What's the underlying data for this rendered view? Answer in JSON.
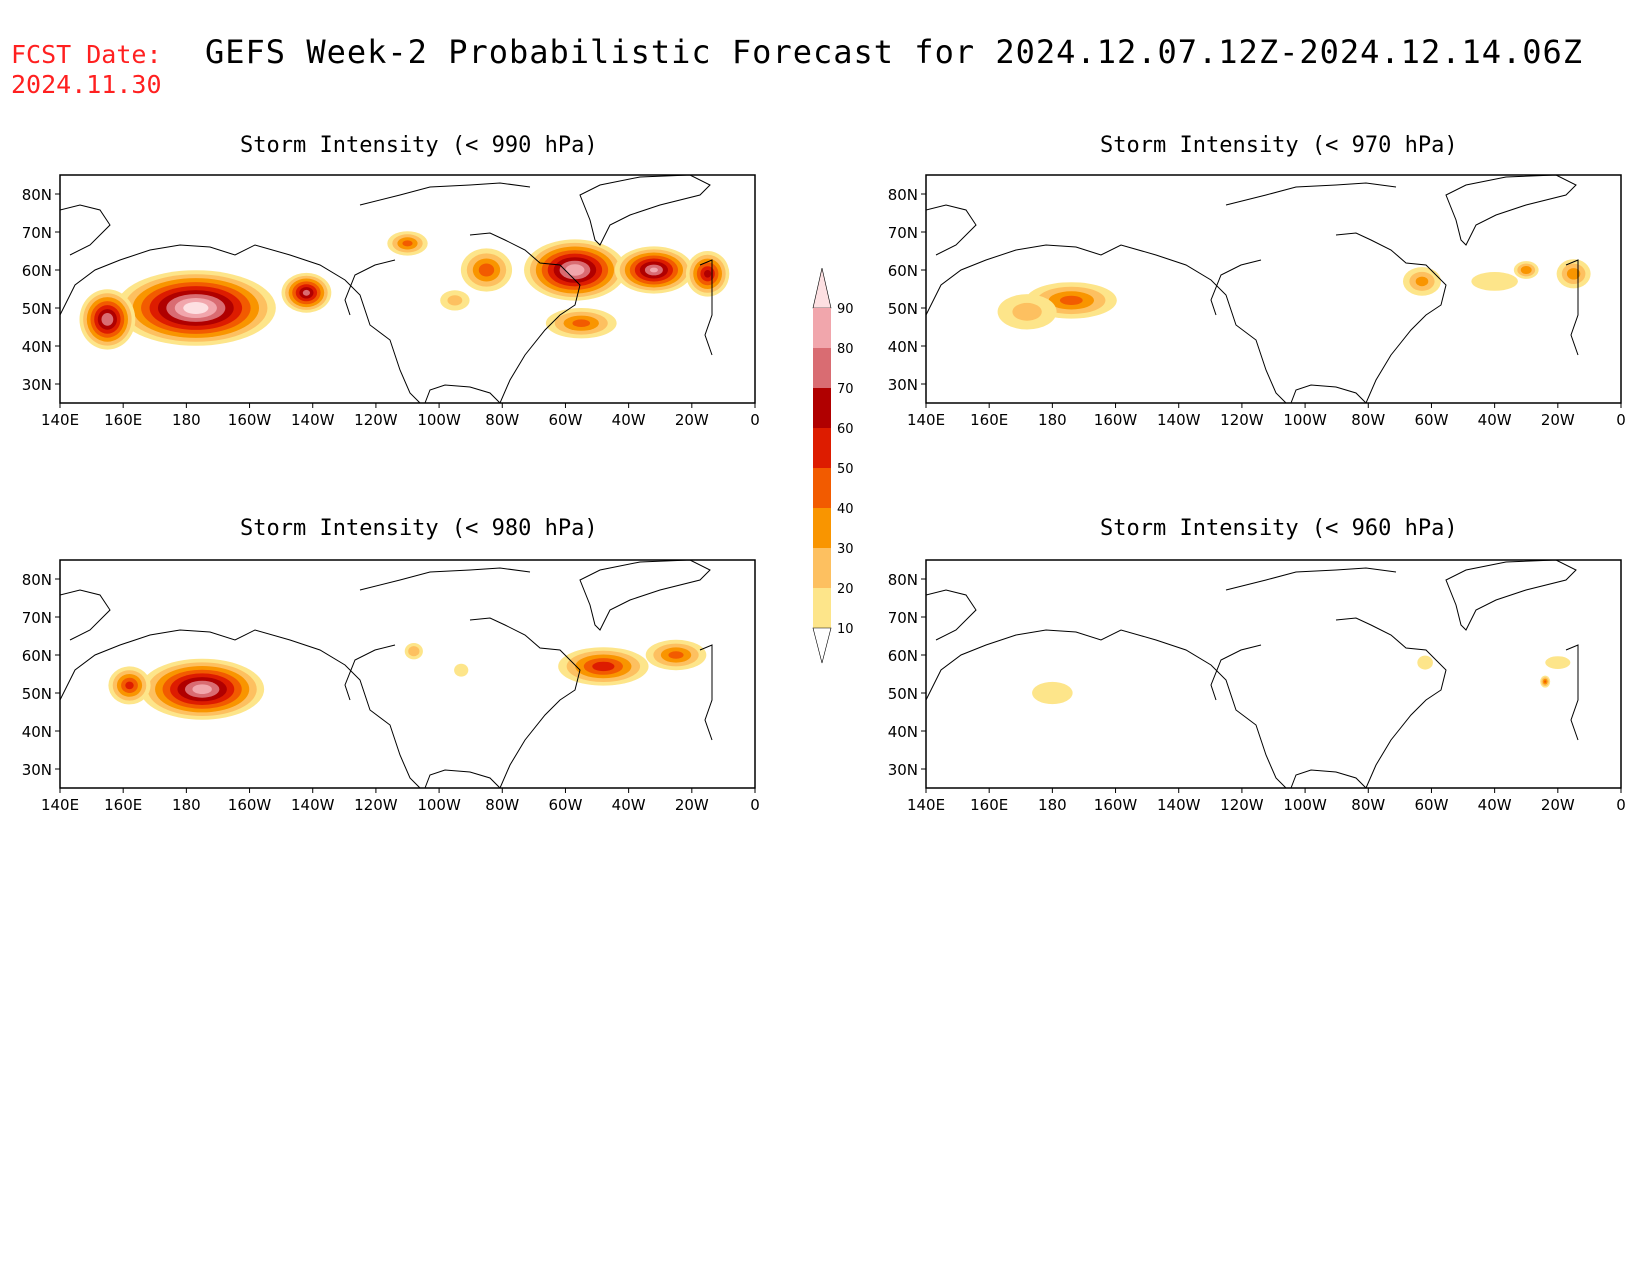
{
  "header": {
    "fcst_label": "FCST Date:",
    "fcst_date": "2024.11.30",
    "title": "GEFS Week-2 Probabilistic Forecast for 2024.12.07.12Z-2024.12.14.06Z"
  },
  "axes": {
    "lon_labels": [
      "140E",
      "160E",
      "180",
      "160W",
      "140W",
      "120W",
      "100W",
      "80W",
      "60W",
      "40W",
      "20W",
      "0"
    ],
    "lon_values": [
      140,
      160,
      180,
      200,
      220,
      240,
      260,
      280,
      300,
      320,
      340,
      360
    ],
    "lat_labels": [
      "30N",
      "40N",
      "50N",
      "60N",
      "70N",
      "80N"
    ],
    "lat_values": [
      30,
      40,
      50,
      60,
      70,
      80
    ],
    "lon_range": [
      140,
      360
    ],
    "lat_range": [
      25,
      85
    ]
  },
  "colorbar": {
    "levels": [
      10,
      20,
      30,
      40,
      50,
      60,
      70,
      80,
      90
    ],
    "colors": [
      "#fff4b2",
      "#fde58a",
      "#fdc060",
      "#f99500",
      "#f25b00",
      "#dd1c00",
      "#b00000",
      "#d96c72",
      "#f1a6ac",
      "#fde0e2"
    ]
  },
  "chart_data": [
    {
      "type": "heatmap",
      "title": "Storm Intensity (< 990 hPa)",
      "blobs": [
        {
          "lon": 183,
          "lat": 50,
          "rlon": 28,
          "rlat": 11,
          "p": 97
        },
        {
          "lon": 155,
          "lat": 47,
          "rlon": 10,
          "rlat": 9,
          "p": 78
        },
        {
          "lon": 218,
          "lat": 54,
          "rlon": 9,
          "rlat": 6,
          "p": 72
        },
        {
          "lon": 303,
          "lat": 60,
          "rlon": 18,
          "rlat": 9,
          "p": 88
        },
        {
          "lon": 328,
          "lat": 60,
          "rlon": 14,
          "rlat": 7,
          "p": 80
        },
        {
          "lon": 345,
          "lat": 59,
          "rlon": 8,
          "rlat": 7,
          "p": 62
        },
        {
          "lon": 275,
          "lat": 60,
          "rlon": 10,
          "rlat": 7,
          "p": 45
        },
        {
          "lon": 250,
          "lat": 67,
          "rlon": 8,
          "rlat": 4,
          "p": 42
        },
        {
          "lon": 305,
          "lat": 46,
          "rlon": 14,
          "rlat": 5,
          "p": 42
        },
        {
          "lon": 265,
          "lat": 52,
          "rlon": 7,
          "rlat": 4,
          "p": 22
        }
      ]
    },
    {
      "type": "heatmap",
      "title": "Storm Intensity (< 970 hPa)",
      "blobs": [
        {
          "lon": 186,
          "lat": 52,
          "rlon": 18,
          "rlat": 6,
          "p": 42
        },
        {
          "lon": 172,
          "lat": 49,
          "rlon": 14,
          "rlat": 7,
          "p": 22
        },
        {
          "lon": 297,
          "lat": 57,
          "rlon": 8,
          "rlat": 5,
          "p": 32
        },
        {
          "lon": 320,
          "lat": 57,
          "rlon": 12,
          "rlat": 4,
          "p": 18
        },
        {
          "lon": 345,
          "lat": 59,
          "rlon": 7,
          "rlat": 5,
          "p": 35
        },
        {
          "lon": 330,
          "lat": 60,
          "rlon": 5,
          "rlat": 3,
          "p": 38
        }
      ]
    },
    {
      "type": "heatmap",
      "title": "Storm Intensity (< 980 hPa)",
      "blobs": [
        {
          "lon": 185,
          "lat": 51,
          "rlon": 22,
          "rlat": 9,
          "p": 85
        },
        {
          "lon": 162,
          "lat": 52,
          "rlon": 8,
          "rlat": 6,
          "p": 52
        },
        {
          "lon": 312,
          "lat": 57,
          "rlon": 17,
          "rlat": 6,
          "p": 55
        },
        {
          "lon": 335,
          "lat": 60,
          "rlon": 12,
          "rlat": 5,
          "p": 42
        },
        {
          "lon": 252,
          "lat": 61,
          "rlon": 4,
          "rlat": 3,
          "p": 28
        },
        {
          "lon": 267,
          "lat": 56,
          "rlon": 4,
          "rlat": 3,
          "p": 15
        }
      ]
    },
    {
      "type": "heatmap",
      "title": "Storm Intensity (< 960 hPa)",
      "blobs": [
        {
          "lon": 180,
          "lat": 50,
          "rlon": 11,
          "rlat": 5,
          "p": 16
        },
        {
          "lon": 298,
          "lat": 58,
          "rlon": 4,
          "rlat": 3,
          "p": 18
        },
        {
          "lon": 340,
          "lat": 58,
          "rlon": 7,
          "rlat": 3,
          "p": 15
        },
        {
          "lon": 336,
          "lat": 53,
          "rlon": 2,
          "rlat": 2,
          "p": 40
        }
      ]
    }
  ]
}
